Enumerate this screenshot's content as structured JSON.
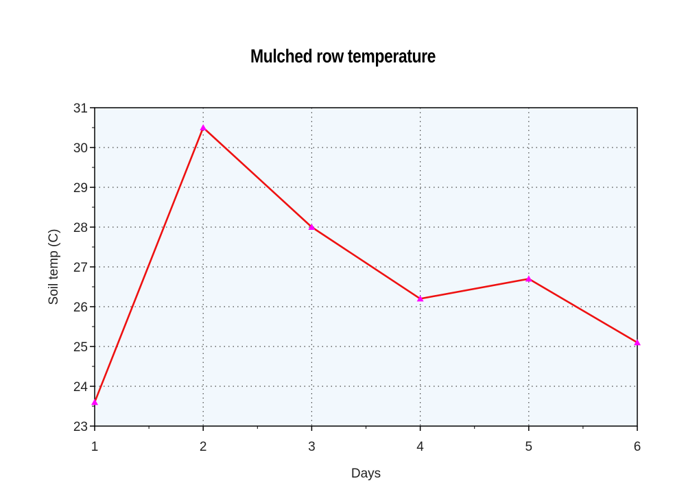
{
  "chart_data": {
    "type": "line",
    "title": "Mulched row temperature",
    "xlabel": "Days",
    "ylabel": "Soil temp (C)",
    "x": [
      1,
      2,
      3,
      4,
      5,
      6
    ],
    "xlim": [
      1,
      6
    ],
    "ylim": [
      23,
      31
    ],
    "yticks": [
      23,
      24,
      25,
      26,
      27,
      28,
      29,
      30,
      31
    ],
    "xticks": [
      1,
      2,
      3,
      4,
      5,
      6
    ],
    "grid": true,
    "series": [
      {
        "values": [
          23.6,
          30.5,
          28.0,
          26.2,
          26.7,
          25.1
        ]
      }
    ],
    "colors": {
      "line": "#ee1111",
      "marker": "#ff00ff",
      "plot_background": "#f2f8fd",
      "grid": "#444444"
    }
  }
}
